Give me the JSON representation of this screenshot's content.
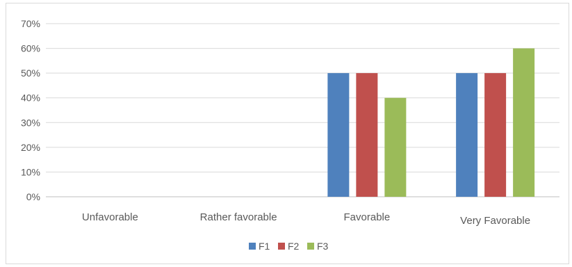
{
  "chart_data": {
    "type": "bar",
    "title": "",
    "xlabel": "",
    "ylabel": "",
    "categories": [
      "Unfavorable",
      "Rather favorable",
      "Favorable",
      "Very Favorable"
    ],
    "series": [
      {
        "name": "F1",
        "color": "#4f81bd",
        "values": [
          0,
          0,
          0.5,
          0.5
        ]
      },
      {
        "name": "F2",
        "color": "#c0504d",
        "values": [
          0,
          0,
          0.5,
          0.5
        ]
      },
      {
        "name": "F3",
        "color": "#9bbb59",
        "values": [
          0,
          0,
          0.4,
          0.6
        ]
      }
    ],
    "ylim": [
      0,
      0.7
    ],
    "yticks": [
      "0%",
      "10%",
      "20%",
      "30%",
      "40%",
      "50%",
      "60%",
      "70%"
    ],
    "grid": true,
    "legend_position": "bottom"
  }
}
